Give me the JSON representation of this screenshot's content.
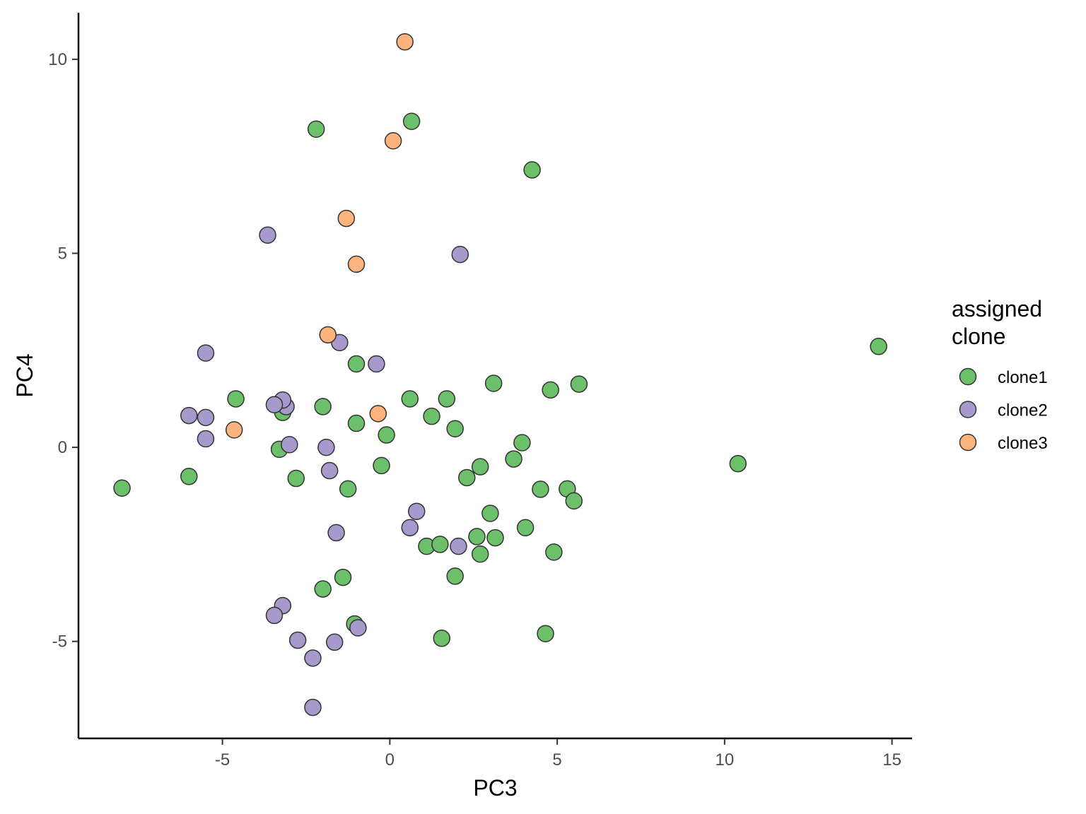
{
  "chart_data": {
    "type": "scatter",
    "xlabel": "PC3",
    "ylabel": "PC4",
    "xlim": [
      -9.3,
      15.6
    ],
    "ylim": [
      -7.5,
      11.2
    ],
    "x_ticks": [
      -5,
      0,
      5,
      10,
      15
    ],
    "y_ticks": [
      -5,
      0,
      5,
      10
    ],
    "x_tick_labels": [
      "-5",
      "0",
      "5",
      "10",
      "15"
    ],
    "y_tick_labels": [
      "-5",
      "0",
      "5",
      "10"
    ],
    "grid": false,
    "legend": {
      "title_lines": [
        "assigned",
        "clone"
      ],
      "position": "right"
    },
    "series": [
      {
        "name": "clone1",
        "color": "#6DC06A",
        "points": [
          [
            -8.0,
            -1.05
          ],
          [
            -6.0,
            -0.75
          ],
          [
            -4.6,
            1.25
          ],
          [
            -3.2,
            0.9
          ],
          [
            -3.3,
            -0.05
          ],
          [
            -2.8,
            -0.8
          ],
          [
            -2.0,
            1.05
          ],
          [
            -2.2,
            8.2
          ],
          [
            -2.0,
            -3.65
          ],
          [
            -1.4,
            -3.35
          ],
          [
            -1.25,
            -1.07
          ],
          [
            -1.0,
            2.15
          ],
          [
            -1.0,
            0.62
          ],
          [
            -1.05,
            -4.55
          ],
          [
            -0.25,
            -0.47
          ],
          [
            -0.1,
            0.32
          ],
          [
            0.6,
            1.25
          ],
          [
            0.65,
            8.4
          ],
          [
            1.25,
            0.8
          ],
          [
            1.7,
            1.25
          ],
          [
            1.95,
            0.48
          ],
          [
            1.1,
            -2.55
          ],
          [
            1.5,
            -2.5
          ],
          [
            1.55,
            -4.92
          ],
          [
            1.95,
            -3.32
          ],
          [
            2.3,
            -0.78
          ],
          [
            2.6,
            -2.3
          ],
          [
            2.7,
            -0.5
          ],
          [
            2.7,
            -2.75
          ],
          [
            3.0,
            -1.7
          ],
          [
            3.1,
            1.65
          ],
          [
            3.15,
            -2.33
          ],
          [
            3.7,
            -0.3
          ],
          [
            3.95,
            0.12
          ],
          [
            4.05,
            -2.07
          ],
          [
            4.25,
            7.15
          ],
          [
            4.5,
            -1.08
          ],
          [
            4.65,
            -4.8
          ],
          [
            4.8,
            1.48
          ],
          [
            4.9,
            -2.7
          ],
          [
            5.3,
            -1.07
          ],
          [
            5.5,
            -1.38
          ],
          [
            5.65,
            1.63
          ],
          [
            10.4,
            -0.42
          ],
          [
            14.6,
            2.6
          ]
        ]
      },
      {
        "name": "clone2",
        "color": "#A899CD",
        "points": [
          [
            -6.0,
            0.82
          ],
          [
            -5.5,
            2.43
          ],
          [
            -5.5,
            0.77
          ],
          [
            -5.5,
            0.22
          ],
          [
            -3.65,
            5.47
          ],
          [
            -3.1,
            1.05
          ],
          [
            -3.2,
            1.22
          ],
          [
            -3.45,
            1.1
          ],
          [
            -3.0,
            0.07
          ],
          [
            -3.2,
            -4.08
          ],
          [
            -3.45,
            -4.33
          ],
          [
            -2.75,
            -4.97
          ],
          [
            -2.3,
            -5.43
          ],
          [
            -2.3,
            -6.7
          ],
          [
            -1.9,
            0.0
          ],
          [
            -1.8,
            -0.6
          ],
          [
            -1.6,
            -2.2
          ],
          [
            -1.65,
            -5.02
          ],
          [
            -1.5,
            2.7
          ],
          [
            -0.95,
            -4.65
          ],
          [
            -0.4,
            2.15
          ],
          [
            0.6,
            -2.07
          ],
          [
            0.8,
            -1.65
          ],
          [
            2.05,
            -2.55
          ],
          [
            2.1,
            4.97
          ]
        ]
      },
      {
        "name": "clone3",
        "color": "#FDB37D",
        "points": [
          [
            -4.65,
            0.45
          ],
          [
            -1.85,
            2.9
          ],
          [
            -1.3,
            5.9
          ],
          [
            -1.0,
            4.72
          ],
          [
            -0.35,
            0.87
          ],
          [
            0.1,
            7.9
          ],
          [
            0.45,
            10.45
          ]
        ]
      }
    ]
  }
}
